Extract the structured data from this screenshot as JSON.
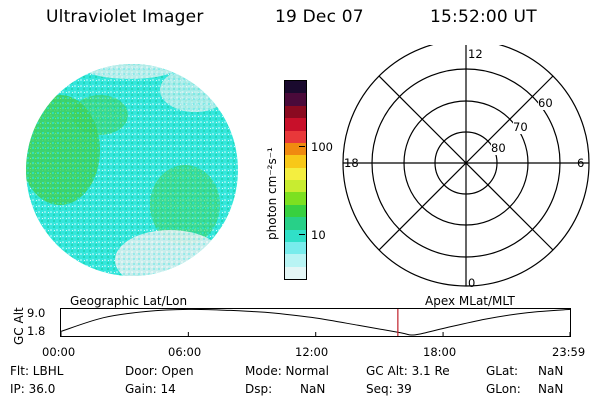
{
  "header": {
    "instrument": "Ultraviolet Imager",
    "date": "19 Dec 07",
    "time": "15:52:00 UT"
  },
  "colorbar": {
    "unit_label": "photon cm⁻²s⁻¹",
    "ticks": [
      "100",
      "10"
    ],
    "colors_top_to_bottom": [
      "#1a0a2e",
      "#4a0a3a",
      "#8a0a20",
      "#c8102a",
      "#e8383a",
      "#f08a10",
      "#f8c818",
      "#f4ee40",
      "#c8ec30",
      "#7ce020",
      "#38d040",
      "#28d088",
      "#30e0c8",
      "#78ecec",
      "#b8f4f4",
      "#e4f6f6"
    ]
  },
  "image_disk": {
    "description_colors": [
      "#30e8e0",
      "#38d060",
      "#7cf0ec",
      "#d8f0f0"
    ]
  },
  "polar_grid": {
    "mlt_labels": {
      "top": "12",
      "left": "18",
      "right": "6",
      "bottom": "0"
    },
    "lat_labels": [
      "60",
      "70",
      "80"
    ]
  },
  "footer_plot": {
    "left_title": "Geographic Lat/Lon",
    "right_title": "Apex MLat/MLT",
    "ylabel": "GC Alt",
    "y_ticks": [
      "9.0",
      "1.8"
    ],
    "x_ticks": [
      "00:00",
      "06:00",
      "12:00",
      "18:00",
      "23:59"
    ],
    "marker_color": "#c0202a"
  },
  "chart_data": {
    "type": "line",
    "ylabel": "GC Alt",
    "xlabel": "",
    "x_ticks": [
      "00:00",
      "06:00",
      "12:00",
      "18:00",
      "23:59"
    ],
    "ylim": [
      1.8,
      9.0
    ],
    "x_hours": [
      0,
      2,
      4,
      6,
      8,
      9,
      10,
      12,
      14,
      16,
      16.5,
      17,
      18,
      20,
      22,
      23.98
    ],
    "values": [
      2.8,
      6.6,
      8.3,
      8.9,
      8.6,
      8.3,
      7.9,
      6.5,
      4.5,
      2.4,
      1.8,
      2.2,
      3.6,
      6.2,
      8.0,
      8.9
    ],
    "marker_hour": 15.87
  },
  "status": {
    "filter": "Flt: LBHL",
    "ip": "IP: 36.0",
    "door": "Door: Open",
    "gain": "Gain: 14",
    "mode": "Mode: Normal",
    "dsp_label": "Dsp:",
    "dsp_value": "NaN",
    "gc_alt": "GC Alt: 3.1 Re",
    "seq": "Seq: 39",
    "glat_label": "GLat:",
    "glat_value": "NaN",
    "glon_label": "GLon:",
    "glon_value": "NaN"
  }
}
